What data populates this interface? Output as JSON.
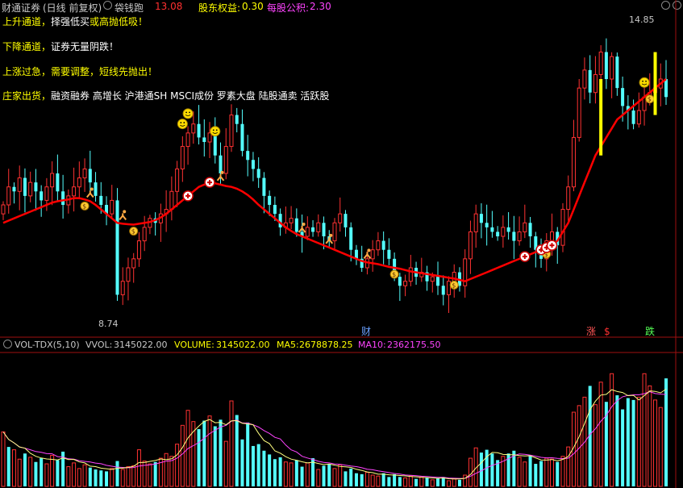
{
  "header": {
    "title": "财通证券",
    "period": "(日线 前复权)",
    "indicator_name": "袋钱跑",
    "indicator_value": "13.08",
    "equity_label": "股东权益:",
    "equity_value": "0.30",
    "reserve_label": "每股公积:",
    "reserve_value": "2.30"
  },
  "annotations": {
    "line1_a": "上升通道，",
    "line1_b": "择强低买",
    "line1_c": "或高抛低吸！",
    "line2_a": "下降通道，",
    "line2_b": "证券无量阴跌！",
    "line3_a": "上涨过急，",
    "line3_b": "需要调整，短线先抛出！",
    "line4_a": "庄家出货，",
    "line4_b": "融资融券 高增长 沪港通SH MSCI成份 罗素大盘 陆股通卖 活跃股"
  },
  "price_labels": {
    "high": "14.85",
    "low": "8.74"
  },
  "bottom_marks": {
    "cai": "财",
    "zhang": "涨",
    "die": "跌",
    "s": "$"
  },
  "volume_header": {
    "name": "VOL-TDX(5,10)",
    "vvol_label": "VVOL:",
    "vvol_value": "3145022.00",
    "volume_label": "VOLUME:",
    "volume_value": "3145022.00",
    "ma5_label": "MA5:",
    "ma5_value": "2678878.25",
    "ma10_label": "MA10:",
    "ma10_value": "2362175.50"
  },
  "colors": {
    "up": "#ff3232",
    "down": "#54ffff",
    "ma_line": "#ff0000",
    "vol_ma5": "#ffff80",
    "vol_ma10": "#ff44ff",
    "frame": "#a01010"
  },
  "icons": [
    "smiley-icon",
    "moneybag-icon",
    "plus-circle-icon",
    "runner-icon",
    "yellow-bar-marker"
  ],
  "chart_data": [
    {
      "type": "candlestick",
      "title": "财通证券",
      "price_axis": {
        "ylim": [
          8.2,
          15.2
        ]
      },
      "high": 14.85,
      "low": 8.74,
      "close": [
        11.0,
        11.4,
        11.3,
        11.6,
        11.2,
        11.5,
        11.3,
        11.1,
        11.4,
        11.7,
        11.3,
        11.0,
        11.2,
        11.4,
        11.6,
        11.8,
        11.5,
        11.2,
        11.0,
        10.8,
        11.1,
        9.0,
        9.3,
        9.6,
        9.8,
        10.2,
        10.5,
        10.7,
        10.6,
        10.8,
        10.9,
        11.3,
        11.8,
        12.3,
        12.6,
        12.8,
        12.5,
        12.4,
        12.6,
        12.1,
        11.7,
        12.3,
        13.0,
        12.8,
        12.2,
        12.0,
        11.8,
        11.6,
        11.2,
        11.0,
        10.8,
        10.5,
        10.6,
        10.7,
        10.4,
        10.3,
        10.5,
        10.4,
        10.6,
        10.3,
        10.2,
        10.6,
        10.8,
        10.5,
        10.0,
        9.8,
        9.6,
        9.8,
        10.0,
        10.2,
        10.0,
        9.8,
        9.4,
        9.2,
        9.3,
        9.6,
        9.4,
        9.5,
        9.3,
        9.4,
        9.2,
        9.0,
        9.3,
        9.5,
        9.2,
        9.8,
        10.4,
        10.8,
        10.6,
        10.5,
        10.4,
        10.3,
        10.5,
        10.4,
        10.2,
        10.4,
        10.6,
        10.3,
        10.0,
        9.8,
        10.2,
        10.4,
        10.1,
        10.9,
        11.4,
        12.5,
        13.6,
        14.0,
        13.5,
        13.9,
        14.4,
        13.8,
        14.3,
        13.6,
        13.2,
        13.1,
        12.8,
        13.1,
        13.4,
        13.5,
        13.6,
        13.8,
        13.4
      ]
    },
    {
      "type": "line",
      "name": "",
      "y": [
        10.6,
        10.65,
        10.7,
        10.75,
        10.8,
        10.85,
        10.9,
        10.95,
        11.0,
        11.05,
        11.08,
        11.1,
        11.12,
        11.15,
        11.15,
        11.12,
        11.08,
        11.0,
        10.9,
        10.8,
        10.7,
        10.6,
        10.58,
        10.57,
        10.56,
        10.58,
        10.6,
        10.62,
        10.66,
        10.72,
        10.8,
        10.9,
        11.0,
        11.1,
        11.2,
        11.3,
        11.4,
        11.45,
        11.5,
        11.48,
        11.45,
        11.42,
        11.4,
        11.36,
        11.3,
        11.22,
        11.12,
        11.0,
        10.9,
        10.8,
        10.7,
        10.6,
        10.5,
        10.42,
        10.35,
        10.3,
        10.25,
        10.2,
        10.15,
        10.1,
        10.05,
        10.0,
        9.95,
        9.9,
        9.85,
        9.8,
        9.75,
        9.72,
        9.7,
        9.68,
        9.65,
        9.62,
        9.6,
        9.58,
        9.55,
        9.52,
        9.5,
        9.48,
        9.46,
        9.44,
        9.42,
        9.4,
        9.38,
        9.36,
        9.33,
        9.3,
        9.35,
        9.4,
        9.45,
        9.5,
        9.55,
        9.6,
        9.65,
        9.7,
        9.75,
        9.8,
        9.85,
        9.9,
        9.95,
        10.0,
        10.05,
        10.1,
        10.2,
        10.4,
        10.6,
        10.9,
        11.2,
        11.5,
        11.8,
        12.1,
        12.3,
        12.5,
        12.7,
        12.9,
        13.0,
        13.1,
        13.2,
        13.3,
        13.4,
        13.5,
        13.6,
        13.7,
        13.8
      ]
    },
    {
      "type": "bar",
      "name": "VOLUME",
      "values": [
        5.8,
        4.2,
        3.9,
        2.9,
        3.5,
        3.1,
        2.6,
        3.0,
        2.4,
        3.3,
        2.8,
        3.7,
        2.1,
        2.5,
        1.9,
        2.3,
        2.0,
        1.8,
        1.7,
        1.6,
        1.9,
        2.7,
        1.8,
        2.1,
        2.2,
        3.9,
        2.7,
        2.4,
        2.6,
        3.0,
        3.5,
        3.2,
        4.5,
        6.5,
        8.1,
        6.9,
        6.1,
        7.0,
        7.5,
        6.4,
        7.1,
        4.8,
        9.1,
        7.6,
        5.0,
        6.8,
        4.3,
        4.5,
        3.8,
        3.4,
        2.9,
        3.1,
        2.6,
        2.5,
        2.8,
        2.1,
        2.5,
        3.0,
        1.8,
        2.2,
        2.4,
        1.9,
        2.3,
        1.6,
        1.9,
        1.4,
        1.3,
        1.5,
        1.2,
        1.1,
        1.4,
        1.0,
        1.3,
        1.0,
        0.9,
        1.1,
        0.8,
        1.0,
        0.9,
        0.7,
        0.9,
        1.0,
        0.6,
        0.8,
        0.7,
        1.2,
        3.0,
        4.1,
        3.6,
        3.9,
        3.5,
        2.8,
        3.2,
        3.5,
        3.8,
        3.1,
        2.6,
        3.3,
        2.4,
        2.7,
        3.0,
        2.9,
        2.6,
        3.2,
        4.2,
        7.9,
        8.6,
        9.5,
        10.7,
        8.7,
        11.1,
        9.0,
        12.0,
        9.7,
        8.2,
        9.4,
        9.2,
        9.5,
        12.0,
        10.7,
        9.2,
        8.4,
        11.5
      ],
      "direction": [
        1,
        -1,
        1,
        1,
        -1,
        1,
        -1,
        -1,
        1,
        1,
        -1,
        -1,
        1,
        1,
        1,
        1,
        -1,
        -1,
        -1,
        -1,
        1,
        -1,
        1,
        1,
        1,
        1,
        1,
        1,
        -1,
        1,
        1,
        1,
        1,
        1,
        1,
        1,
        -1,
        -1,
        1,
        -1,
        -1,
        1,
        1,
        -1,
        -1,
        -1,
        -1,
        -1,
        -1,
        -1,
        -1,
        -1,
        1,
        1,
        -1,
        -1,
        1,
        -1,
        1,
        -1,
        -1,
        1,
        1,
        -1,
        -1,
        -1,
        -1,
        1,
        1,
        1,
        -1,
        -1,
        -1,
        -1,
        1,
        1,
        -1,
        1,
        -1,
        1,
        -1,
        -1,
        1,
        1,
        -1,
        1,
        1,
        1,
        -1,
        -1,
        -1,
        -1,
        1,
        -1,
        -1,
        1,
        1,
        -1,
        -1,
        -1,
        1,
        1,
        -1,
        1,
        1,
        1,
        1,
        1,
        -1,
        1,
        1,
        -1,
        1,
        -1,
        -1,
        -1,
        -1,
        1,
        1,
        1,
        1,
        1,
        -1
      ],
      "ylim": [
        0,
        14
      ]
    }
  ]
}
